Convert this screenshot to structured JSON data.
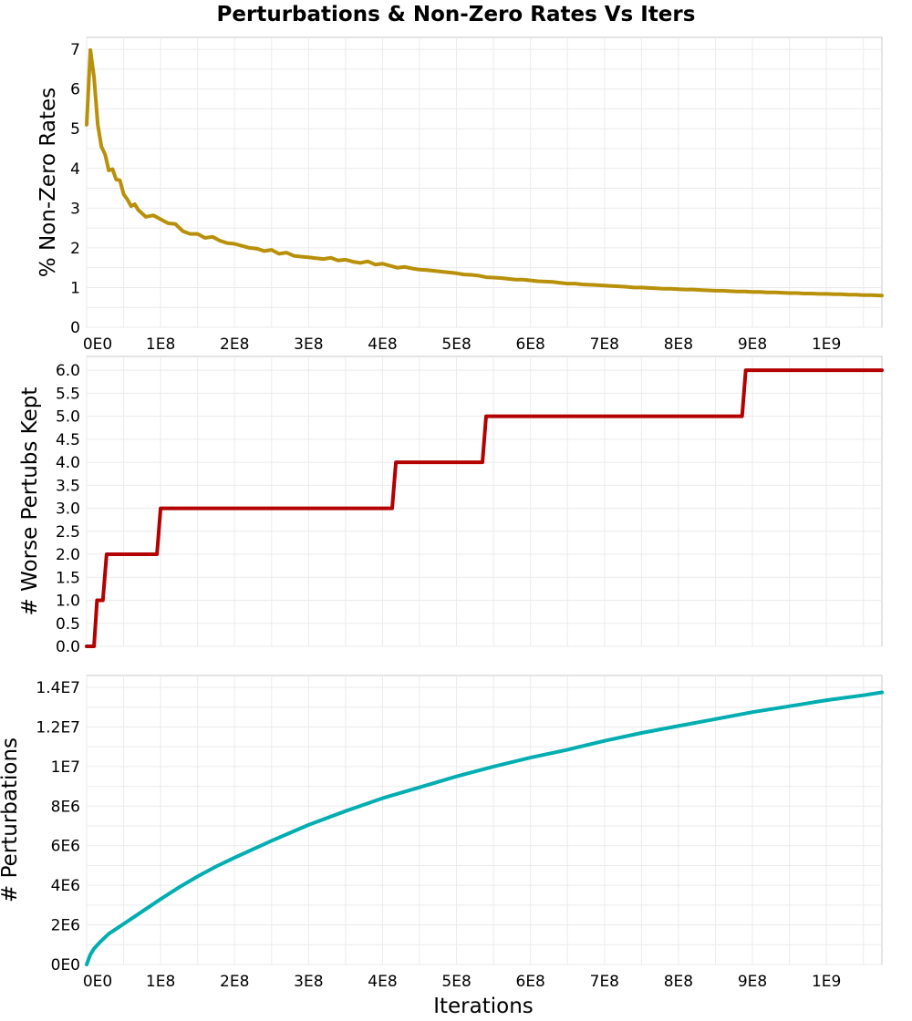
{
  "figure": {
    "title": "Perturbations & Non-Zero Rates Vs Iters",
    "xlabel": "Iterations"
  },
  "chart_data": [
    {
      "type": "line",
      "ylabel": "% Non-Zero Rates",
      "xlim": [
        0,
        1075000000
      ],
      "ylim": [
        0,
        7.3
      ],
      "x_ticks": [
        0,
        100000000,
        200000000,
        300000000,
        400000000,
        500000000,
        600000000,
        700000000,
        800000000,
        900000000,
        1000000000
      ],
      "x_tick_labels": [
        "0E0",
        "1E8",
        "2E8",
        "3E8",
        "4E8",
        "5E8",
        "6E8",
        "7E8",
        "8E8",
        "9E8",
        "1E9"
      ],
      "y_ticks": [
        0,
        1,
        2,
        3,
        4,
        5,
        6,
        7
      ],
      "y_tick_labels": [
        "0",
        "1",
        "2",
        "3",
        "4",
        "5",
        "6",
        "7"
      ],
      "grid": true,
      "color": "#b8900a",
      "series": [
        {
          "x": [
            0,
            5000000,
            10000000,
            15000000,
            20000000,
            25000000,
            30000000,
            35000000,
            40000000,
            45000000,
            50000000,
            55000000,
            60000000,
            65000000,
            70000000,
            80000000,
            90000000,
            100000000,
            110000000,
            120000000,
            130000000,
            140000000,
            150000000,
            160000000,
            170000000,
            180000000,
            190000000,
            200000000,
            210000000,
            220000000,
            230000000,
            240000000,
            250000000,
            260000000,
            270000000,
            280000000,
            290000000,
            300000000,
            310000000,
            320000000,
            330000000,
            340000000,
            350000000,
            360000000,
            370000000,
            380000000,
            390000000,
            400000000,
            410000000,
            420000000,
            430000000,
            440000000,
            450000000,
            460000000,
            470000000,
            480000000,
            490000000,
            500000000,
            510000000,
            520000000,
            530000000,
            540000000,
            550000000,
            560000000,
            570000000,
            580000000,
            590000000,
            600000000,
            610000000,
            620000000,
            630000000,
            640000000,
            650000000,
            660000000,
            670000000,
            680000000,
            690000000,
            700000000,
            710000000,
            720000000,
            730000000,
            740000000,
            750000000,
            760000000,
            770000000,
            780000000,
            790000000,
            800000000,
            810000000,
            820000000,
            830000000,
            840000000,
            850000000,
            860000000,
            870000000,
            880000000,
            890000000,
            900000000,
            910000000,
            920000000,
            930000000,
            940000000,
            950000000,
            960000000,
            970000000,
            980000000,
            990000000,
            1000000000,
            1010000000,
            1020000000,
            1030000000,
            1040000000,
            1050000000,
            1060000000,
            1075000000
          ],
          "y": [
            5.1,
            6.98,
            6.3,
            5.1,
            4.55,
            4.35,
            3.95,
            3.98,
            3.72,
            3.7,
            3.35,
            3.22,
            3.05,
            3.1,
            2.95,
            2.78,
            2.82,
            2.72,
            2.62,
            2.6,
            2.42,
            2.35,
            2.35,
            2.25,
            2.28,
            2.18,
            2.12,
            2.1,
            2.05,
            2.0,
            1.98,
            1.92,
            1.95,
            1.85,
            1.88,
            1.8,
            1.78,
            1.76,
            1.74,
            1.72,
            1.75,
            1.68,
            1.7,
            1.65,
            1.62,
            1.66,
            1.58,
            1.6,
            1.55,
            1.5,
            1.52,
            1.48,
            1.45,
            1.44,
            1.42,
            1.4,
            1.38,
            1.36,
            1.33,
            1.32,
            1.3,
            1.26,
            1.25,
            1.24,
            1.22,
            1.2,
            1.2,
            1.18,
            1.16,
            1.15,
            1.14,
            1.12,
            1.1,
            1.1,
            1.08,
            1.07,
            1.06,
            1.05,
            1.04,
            1.03,
            1.02,
            1.0,
            1.0,
            0.99,
            0.98,
            0.97,
            0.97,
            0.96,
            0.95,
            0.95,
            0.94,
            0.93,
            0.92,
            0.92,
            0.91,
            0.9,
            0.9,
            0.89,
            0.89,
            0.88,
            0.88,
            0.87,
            0.86,
            0.86,
            0.85,
            0.85,
            0.84,
            0.84,
            0.83,
            0.83,
            0.82,
            0.82,
            0.81,
            0.81,
            0.8
          ]
        }
      ]
    },
    {
      "type": "line",
      "ylabel": "# Worse Pertubs Kept",
      "xlim": [
        0,
        1075000000
      ],
      "ylim": [
        0,
        6.3
      ],
      "x_ticks": [
        0,
        100000000,
        200000000,
        300000000,
        400000000,
        500000000,
        600000000,
        700000000,
        800000000,
        900000000,
        1000000000
      ],
      "y_ticks": [
        0,
        0.5,
        1,
        1.5,
        2,
        2.5,
        3,
        3.5,
        4,
        4.5,
        5,
        5.5,
        6
      ],
      "y_tick_labels": [
        "0.0",
        "0.5",
        "1.0",
        "1.5",
        "2.0",
        "2.5",
        "3.0",
        "3.5",
        "4.0",
        "4.5",
        "5.0",
        "5.5",
        "6.0"
      ],
      "grid": true,
      "color": "#b30000",
      "series": [
        {
          "x": [
            0,
            10000000,
            14000000,
            22000000,
            27000000,
            95000000,
            100000000,
            413000000,
            418000000,
            535000000,
            540000000,
            886000000,
            891000000,
            1075000000
          ],
          "y": [
            0,
            0,
            1,
            1,
            2,
            2,
            3,
            3,
            4,
            4,
            5,
            5,
            6,
            6
          ]
        }
      ]
    },
    {
      "type": "line",
      "ylabel": "# Perturbations",
      "xlim": [
        0,
        1075000000
      ],
      "ylim": [
        0,
        14600000
      ],
      "x_ticks": [
        0,
        100000000,
        200000000,
        300000000,
        400000000,
        500000000,
        600000000,
        700000000,
        800000000,
        900000000,
        1000000000
      ],
      "x_tick_labels": [
        "0E0",
        "1E8",
        "2E8",
        "3E8",
        "4E8",
        "5E8",
        "6E8",
        "7E8",
        "8E8",
        "9E8",
        "1E9"
      ],
      "y_ticks": [
        0,
        2000000,
        4000000,
        6000000,
        8000000,
        10000000,
        12000000,
        14000000
      ],
      "y_tick_labels": [
        "0E0",
        "2E6",
        "4E6",
        "6E6",
        "8E6",
        "1E7",
        "1.2E7",
        "1.4E7"
      ],
      "grid": true,
      "color": "#00adb0",
      "series": [
        {
          "x": [
            0,
            5000000,
            10000000,
            20000000,
            30000000,
            40000000,
            50000000,
            60000000,
            80000000,
            100000000,
            125000000,
            150000000,
            175000000,
            200000000,
            250000000,
            300000000,
            350000000,
            400000000,
            450000000,
            500000000,
            550000000,
            600000000,
            650000000,
            700000000,
            750000000,
            800000000,
            850000000,
            900000000,
            950000000,
            1000000000,
            1050000000,
            1075000000
          ],
          "y": [
            0,
            500000,
            800000,
            1200000,
            1550000,
            1800000,
            2050000,
            2300000,
            2800000,
            3300000,
            3900000,
            4450000,
            4950000,
            5400000,
            6250000,
            7050000,
            7750000,
            8400000,
            8950000,
            9500000,
            10000000,
            10450000,
            10850000,
            11300000,
            11700000,
            12050000,
            12400000,
            12750000,
            13050000,
            13350000,
            13600000,
            13750000
          ]
        }
      ]
    }
  ]
}
